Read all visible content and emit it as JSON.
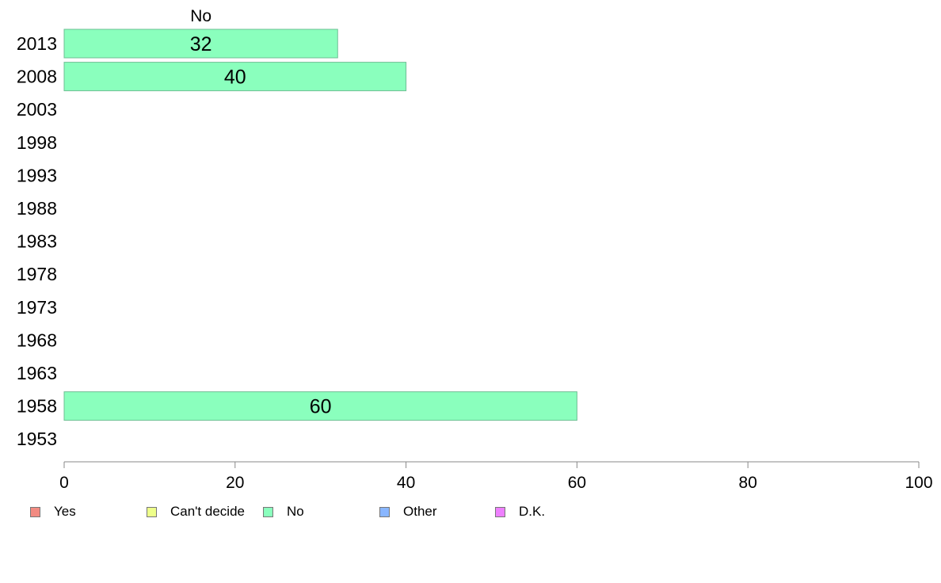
{
  "chart_data": {
    "type": "bar",
    "orientation": "horizontal",
    "categories": [
      "2013",
      "2008",
      "2003",
      "1998",
      "1993",
      "1988",
      "1983",
      "1978",
      "1973",
      "1968",
      "1963",
      "1958",
      "1953"
    ],
    "series": [
      {
        "name": "No",
        "values": [
          32,
          40,
          null,
          null,
          null,
          null,
          null,
          null,
          null,
          null,
          null,
          60,
          null
        ]
      }
    ],
    "column_header": "No",
    "xlim": [
      0,
      100
    ],
    "xticks": [
      "0",
      "20",
      "40",
      "60",
      "80",
      "100"
    ],
    "grid": false,
    "legend_position": "bottom",
    "legend": [
      "Yes",
      "Can't decide",
      "No",
      "Other",
      "D.K."
    ]
  },
  "colors": {
    "Yes": "#f28b82",
    "Can't decide": "#eeff8a",
    "No": "#8affbd",
    "Other": "#89b6ff",
    "D.K.": "#ee80ff",
    "axis": "#888888",
    "bar_border": "#6fbf94"
  }
}
